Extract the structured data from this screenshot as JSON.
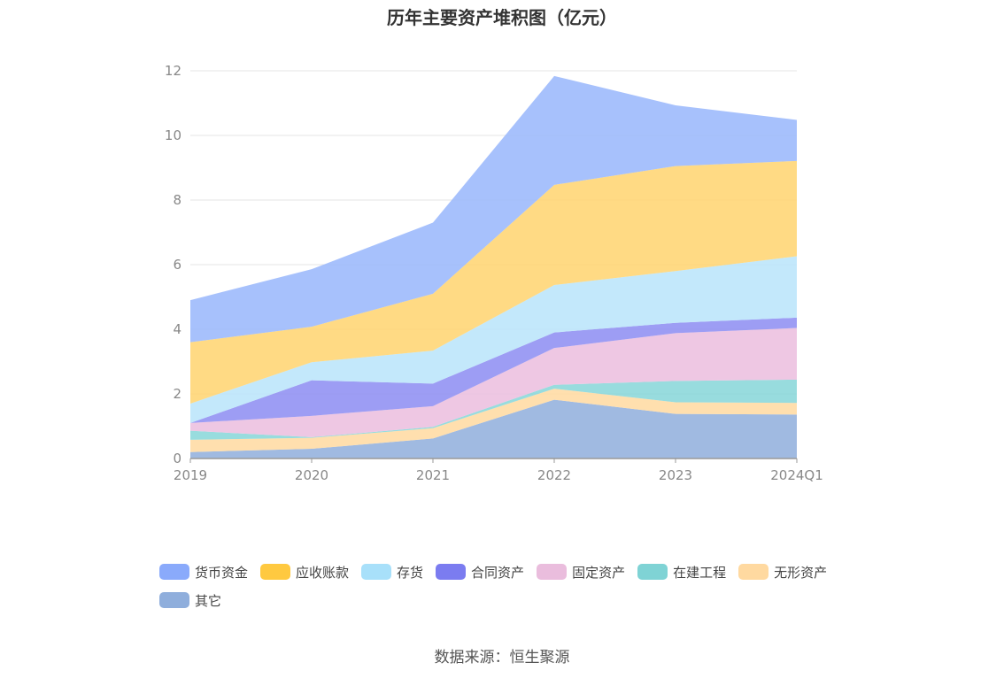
{
  "title": "历年主要资产堆积图（亿元）",
  "source": "数据来源：恒生聚源",
  "chart_data": {
    "type": "area",
    "stacked": true,
    "categories": [
      "2019",
      "2020",
      "2021",
      "2022",
      "2023",
      "2024Q1"
    ],
    "ylim": [
      0,
      12
    ],
    "yticks": [
      0,
      2,
      4,
      6,
      8,
      10,
      12
    ],
    "grid": true,
    "legend_position": "bottom",
    "series": [
      {
        "name": "其它",
        "color": "#8FAEDC",
        "values": [
          0.2,
          0.3,
          0.62,
          1.82,
          1.38,
          1.36
        ]
      },
      {
        "name": "无形资产",
        "color": "#FFD9A0",
        "values": [
          0.38,
          0.34,
          0.32,
          0.34,
          0.36,
          0.36
        ]
      },
      {
        "name": "在建工程",
        "color": "#86D6D8",
        "values": [
          0.28,
          0.02,
          0.04,
          0.12,
          0.66,
          0.72
        ]
      },
      {
        "name": "固定资产",
        "color": "#EBBDDE",
        "values": [
          0.24,
          0.66,
          0.64,
          1.14,
          1.48,
          1.6
        ]
      },
      {
        "name": "合同资产",
        "color": "#8C8CF2",
        "values": [
          0.0,
          1.1,
          0.7,
          0.48,
          0.32,
          0.32
        ]
      },
      {
        "name": "存货",
        "color": "#B8E4FA",
        "values": [
          0.6,
          0.56,
          1.02,
          1.47,
          1.6,
          1.9
        ]
      },
      {
        "name": "应收账款",
        "color": "#FFD36E",
        "values": [
          1.9,
          1.1,
          1.76,
          3.1,
          3.25,
          2.95
        ]
      },
      {
        "name": "货币资金",
        "color": "#98B6FC",
        "values": [
          1.3,
          1.78,
          2.2,
          3.37,
          1.88,
          1.27
        ]
      }
    ]
  },
  "legend": [
    {
      "label": "货币资金",
      "color": "#8AAAFB"
    },
    {
      "label": "应收账款",
      "color": "#FFC940"
    },
    {
      "label": "存货",
      "color": "#A8E0FA"
    },
    {
      "label": "合同资产",
      "color": "#7B7CF0"
    },
    {
      "label": "固定资产",
      "color": "#EABDDD"
    },
    {
      "label": "在建工程",
      "color": "#7FD3D5"
    },
    {
      "label": "无形资产",
      "color": "#FFD9A0"
    },
    {
      "label": "其它",
      "color": "#8FAEDC"
    }
  ]
}
